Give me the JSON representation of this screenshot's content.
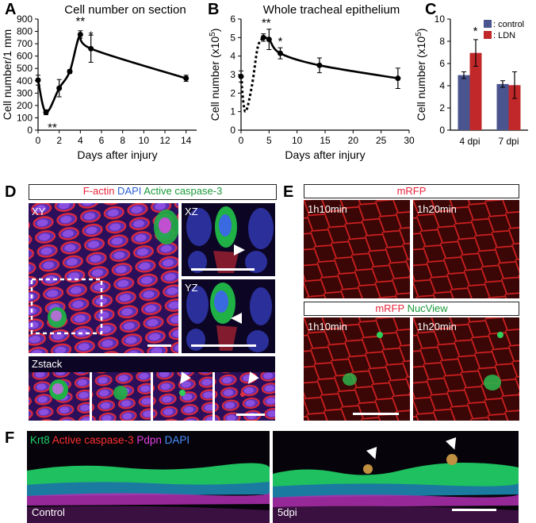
{
  "panel_letters": {
    "a": "A",
    "b": "B",
    "c": "C",
    "d": "D",
    "e": "E",
    "f": "F"
  },
  "chart_data": [
    {
      "type": "line",
      "panel": "A",
      "title": "Cell number on section",
      "xlabel": "Days after injury",
      "ylabel": "Cell number/1 mm",
      "xlim": [
        0,
        15
      ],
      "ylim": [
        0,
        900
      ],
      "xticks": [
        0,
        2,
        4,
        6,
        8,
        10,
        12,
        14
      ],
      "yticks": [
        0,
        100,
        200,
        300,
        400,
        500,
        600,
        700,
        800,
        900
      ],
      "x": [
        0,
        0.75,
        2,
        3,
        4,
        5,
        14
      ],
      "y": [
        405,
        145,
        340,
        475,
        775,
        660,
        420
      ],
      "err": [
        40,
        20,
        70,
        15,
        30,
        110,
        25
      ],
      "annotations": [
        {
          "x": 0.75,
          "y": 145,
          "text": "**",
          "pos": "below"
        },
        {
          "x": 4,
          "y": 775,
          "text": "**",
          "pos": "above"
        },
        {
          "x": 5,
          "y": 660,
          "text": "*",
          "pos": "above"
        }
      ]
    },
    {
      "type": "line",
      "panel": "B",
      "title": "Whole tracheal epithelium",
      "xlabel": "Days after injury",
      "ylabel_main": "Cell number (x10",
      "ylabel_sup": "5",
      "ylabel_end": ")",
      "xlim": [
        0,
        30
      ],
      "ylim": [
        0,
        6
      ],
      "xticks": [
        0,
        5,
        10,
        15,
        20,
        25,
        30
      ],
      "yticks": [
        0,
        1,
        2,
        3,
        4,
        5,
        6
      ],
      "dotted_x": [
        0,
        0.5,
        1,
        2,
        3,
        4
      ],
      "dotted_y": [
        2.9,
        1.3,
        1.1,
        2.5,
        4.5,
        5.0
      ],
      "x": [
        0,
        4,
        5,
        7,
        14,
        28
      ],
      "y": [
        2.9,
        5.0,
        4.9,
        4.15,
        3.5,
        2.8
      ],
      "err": [
        0.3,
        0.2,
        0.55,
        0.3,
        0.4,
        0.55
      ],
      "annotations": [
        {
          "x": 4.5,
          "y": 5.5,
          "text": "**",
          "pos": "above"
        },
        {
          "x": 7,
          "y": 4.5,
          "text": "*",
          "pos": "above"
        }
      ]
    },
    {
      "type": "bar",
      "panel": "C",
      "ylabel_main": "Cell number (x10",
      "ylabel_sup": "5",
      "ylabel_end": ")",
      "categories": [
        "4 dpi",
        "7 dpi"
      ],
      "ylim": [
        0,
        10
      ],
      "yticks": [
        0,
        2,
        4,
        6,
        8,
        10
      ],
      "series": [
        {
          "name": ": control",
          "color": "#4a5590",
          "values": [
            4.95,
            4.15
          ],
          "err": [
            0.3,
            0.3
          ]
        },
        {
          "name": ": LDN",
          "color": "#c0282a",
          "values": [
            6.95,
            4.05
          ],
          "err": [
            1.2,
            1.2
          ]
        }
      ],
      "annotations": [
        {
          "category": "4 dpi",
          "text": "*"
        }
      ]
    }
  ],
  "panel_d": {
    "title_parts": [
      {
        "text": "F-actin",
        "color": "#e8253b"
      },
      {
        "text": " DAPI",
        "color": "#2a5fd4"
      },
      {
        "text": " Active caspase-3",
        "color": "#1a9a3a"
      }
    ],
    "labels": {
      "xy": "XY",
      "xz": "XZ",
      "yz": "YZ",
      "zstack": "Zstack"
    }
  },
  "panel_e": {
    "title_top": "mRFP",
    "title_bottom_parts": [
      {
        "text": "mRFP",
        "color": "#e8253b"
      },
      {
        "text": " NucView",
        "color": "#1a9a3a"
      }
    ],
    "time_labels": [
      "1h10min",
      "1h20min",
      "1h10min",
      "1h20min"
    ]
  },
  "panel_f": {
    "title_parts": [
      {
        "text": "Krt8",
        "color": "#1fd06a"
      },
      {
        "text": " Active caspase-3",
        "color": "#ff3030"
      },
      {
        "text": " Pdpn",
        "color": "#e040e0"
      },
      {
        "text": " DAPI",
        "color": "#4a90ff"
      }
    ],
    "left_label": "Control",
    "right_label": "5dpi"
  }
}
